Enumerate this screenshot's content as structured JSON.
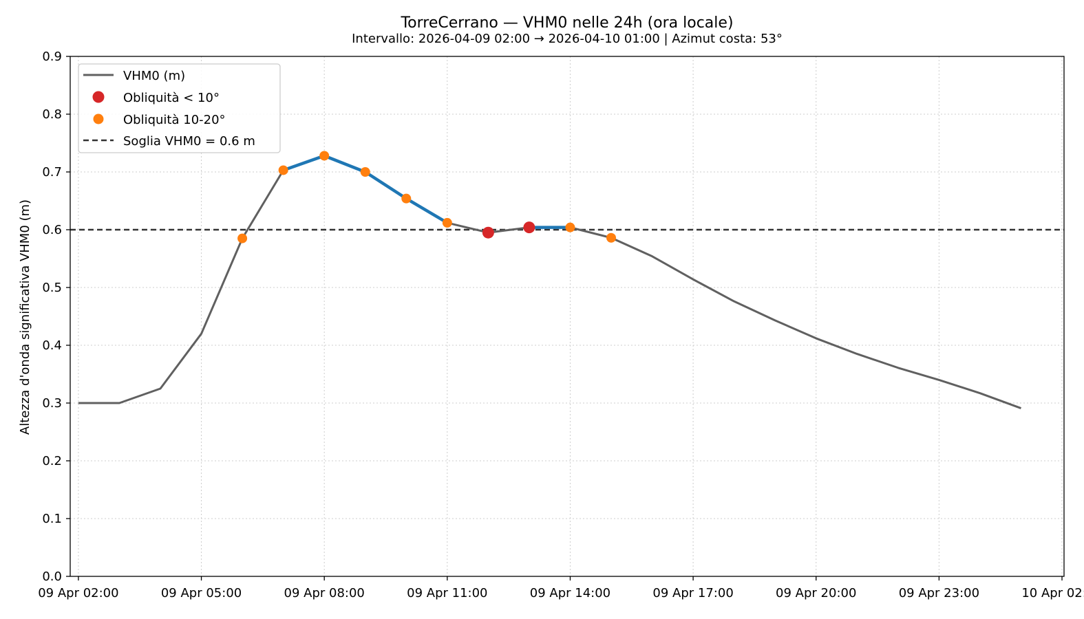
{
  "chart_data": {
    "type": "line",
    "title": "TorreCerrano — VHM0 nelle 24h (ora locale)",
    "subtitle": "Intervallo: 2026-04-09 02:00 → 2026-04-10 01:00  |  Azimut costa: 53°",
    "ylabel": "Altezza d'onda significativa VHM0 (m)",
    "xlabel": "",
    "ylim": [
      0,
      0.9
    ],
    "yticks": [
      0.0,
      0.1,
      0.2,
      0.3,
      0.4,
      0.5,
      0.6,
      0.7,
      0.8,
      0.9
    ],
    "ytick_labels": [
      "0.0",
      "0.1",
      "0.2",
      "0.3",
      "0.4",
      "0.5",
      "0.6",
      "0.7",
      "0.8",
      "0.9"
    ],
    "xlim_hours": [
      -0.2,
      24.05
    ],
    "xticks_hours": [
      0,
      3,
      6,
      9,
      12,
      15,
      18,
      21,
      24
    ],
    "xtick_labels": [
      "09 Apr 02:00",
      "09 Apr 05:00",
      "09 Apr 08:00",
      "09 Apr 11:00",
      "09 Apr 14:00",
      "09 Apr 17:00",
      "09 Apr 20:00",
      "09 Apr 23:00",
      "10 Apr 02:00"
    ],
    "grid": true,
    "series": [
      {
        "name": "VHM0 (m)",
        "color": "#606060",
        "x_hours": [
          0,
          1,
          2,
          3,
          4,
          5,
          6,
          7,
          8,
          9,
          10,
          11,
          12,
          13,
          14,
          15,
          16,
          17,
          18,
          19,
          20,
          21,
          22,
          23
        ],
        "values": [
          0.3,
          0.3,
          0.325,
          0.42,
          0.585,
          0.703,
          0.728,
          0.7,
          0.654,
          0.612,
          0.595,
          0.604,
          0.604,
          0.586,
          0.554,
          0.514,
          0.476,
          0.443,
          0.412,
          0.385,
          0.361,
          0.34,
          0.317,
          0.291
        ]
      }
    ],
    "highlight_segments": {
      "color": "#1f77b4",
      "ranges_hours": [
        [
          5,
          9
        ],
        [
          11,
          12
        ]
      ]
    },
    "markers": [
      {
        "name": "Obliquità < 10°",
        "color": "#d62728",
        "x_hours": [
          10,
          11
        ],
        "values": [
          0.595,
          0.604
        ]
      },
      {
        "name": "Obliquità 10-20°",
        "color": "#ff7f0e",
        "x_hours": [
          4,
          5,
          6,
          7,
          8,
          9,
          12,
          13
        ],
        "values": [
          0.585,
          0.703,
          0.728,
          0.7,
          0.654,
          0.612,
          0.604,
          0.586
        ]
      }
    ],
    "threshold": {
      "name": "Soglia VHM0 = 0.6 m",
      "value": 0.6,
      "color": "#333333"
    },
    "legend": {
      "position": "top-left",
      "entries": [
        "VHM0 (m)",
        "Obliquità < 10°",
        "Obliquità 10-20°",
        "Soglia VHM0 = 0.6 m"
      ]
    }
  }
}
